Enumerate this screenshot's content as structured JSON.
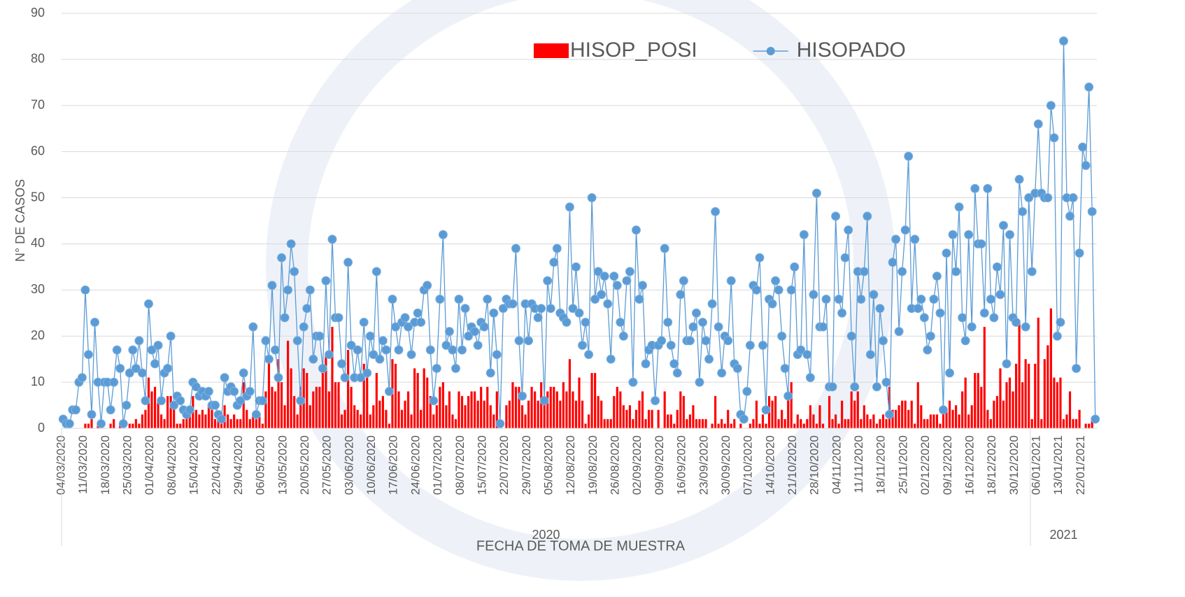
{
  "chart_data": {
    "type": "bar_line",
    "x_label": "FECHA DE TOMA DE MUESTRA",
    "y_label": "N° DE CASOS",
    "legend": "top",
    "grid": true,
    "ylim": [
      0,
      90
    ],
    "yticks": [
      0,
      10,
      20,
      30,
      40,
      50,
      60,
      70,
      80,
      90
    ],
    "x_groups": [
      {
        "label": "2020",
        "count": 306
      },
      {
        "label": "2021",
        "count": 21
      }
    ],
    "categories": [
      "04/03/2020",
      null,
      null,
      null,
      null,
      null,
      null,
      "11/03/2020",
      null,
      null,
      null,
      null,
      null,
      null,
      "18/03/2020",
      null,
      null,
      null,
      null,
      null,
      null,
      "25/03/2020",
      null,
      null,
      null,
      null,
      null,
      null,
      "01/04/2020",
      null,
      null,
      null,
      null,
      null,
      null,
      "08/04/2020",
      null,
      null,
      null,
      null,
      null,
      null,
      "15/04/2020",
      null,
      null,
      null,
      null,
      null,
      null,
      "22/04/2020",
      null,
      null,
      null,
      null,
      null,
      null,
      "29/04/2020",
      null,
      null,
      null,
      null,
      null,
      null,
      "06/05/2020",
      null,
      null,
      null,
      null,
      null,
      null,
      "13/05/2020",
      null,
      null,
      null,
      null,
      null,
      null,
      "20/05/2020",
      null,
      null,
      null,
      null,
      null,
      null,
      "27/05/2020",
      null,
      null,
      null,
      null,
      null,
      null,
      "03/06/2020",
      null,
      null,
      null,
      null,
      null,
      null,
      "10/06/2020",
      null,
      null,
      null,
      null,
      null,
      null,
      "17/06/2020",
      null,
      null,
      null,
      null,
      null,
      null,
      "24/06/2020",
      null,
      null,
      null,
      null,
      null,
      null,
      "01/07/2020",
      null,
      null,
      null,
      null,
      null,
      null,
      "08/07/2020",
      null,
      null,
      null,
      null,
      null,
      null,
      "15/07/2020",
      null,
      null,
      null,
      null,
      null,
      null,
      "22/07/2020",
      null,
      null,
      null,
      null,
      null,
      null,
      "29/07/2020",
      null,
      null,
      null,
      null,
      null,
      null,
      "05/08/2020",
      null,
      null,
      null,
      null,
      null,
      null,
      "12/08/2020",
      null,
      null,
      null,
      null,
      null,
      null,
      "19/08/2020",
      null,
      null,
      null,
      null,
      null,
      null,
      "26/08/2020",
      null,
      null,
      null,
      null,
      null,
      null,
      "02/09/2020",
      null,
      null,
      null,
      null,
      null,
      null,
      "09/09/2020",
      null,
      null,
      null,
      null,
      null,
      null,
      "16/09/2020",
      null,
      null,
      null,
      null,
      null,
      null,
      "23/09/2020",
      null,
      null,
      null,
      null,
      null,
      null,
      "30/09/2020",
      null,
      null,
      null,
      null,
      null,
      null,
      "07/10/2020",
      null,
      null,
      null,
      null,
      null,
      null,
      "14/10/2020",
      null,
      null,
      null,
      null,
      null,
      null,
      "21/10/2020",
      null,
      null,
      null,
      null,
      null,
      null,
      "28/10/2020",
      null,
      null,
      null,
      null,
      null,
      null,
      "04/11/2020",
      null,
      null,
      null,
      null,
      null,
      null,
      "11/11/2020",
      null,
      null,
      null,
      null,
      null,
      null,
      "18/11/2020",
      null,
      null,
      null,
      null,
      null,
      null,
      "25/11/2020",
      null,
      null,
      null,
      null,
      null,
      null,
      "02/12/2020",
      null,
      null,
      null,
      null,
      null,
      null,
      "09/12/2020",
      null,
      null,
      null,
      null,
      null,
      null,
      "16/12/2020",
      null,
      null,
      null,
      null,
      null,
      null,
      "18/12/2020",
      null,
      null,
      null,
      null,
      null,
      null,
      "30/12/2020",
      null,
      null,
      null,
      null,
      null,
      null,
      "06/01/2021",
      null,
      null,
      null,
      null,
      null,
      null,
      "13/01/2021",
      null,
      null,
      null,
      null,
      null,
      null,
      "22/01/2021",
      null,
      null,
      null,
      null
    ],
    "series": [
      {
        "name": "HISOP_POSI",
        "type": "bar",
        "color": "#ff0000",
        "values": [
          0,
          0,
          0,
          0,
          0,
          0,
          0,
          1,
          1,
          2,
          0,
          1,
          0,
          0,
          0,
          1,
          2,
          0,
          1,
          0,
          0,
          1,
          1,
          2,
          1,
          3,
          4,
          11,
          8,
          9,
          6,
          3,
          2,
          7,
          7,
          5,
          1,
          1,
          2,
          3,
          3,
          7,
          4,
          3,
          4,
          3,
          5,
          4,
          2,
          2,
          1,
          5,
          3,
          2,
          3,
          2,
          2,
          10,
          4,
          2,
          3,
          2,
          3,
          1,
          8,
          15,
          9,
          8,
          15,
          10,
          5,
          19,
          13,
          7,
          3,
          9,
          13,
          12,
          5,
          8,
          9,
          9,
          12,
          16,
          8,
          22,
          10,
          10,
          3,
          4,
          17,
          9,
          5,
          4,
          3,
          14,
          11,
          3,
          5,
          12,
          6,
          7,
          4,
          1,
          15,
          14,
          8,
          4,
          6,
          8,
          3,
          13,
          12,
          4,
          13,
          11,
          7,
          3,
          5,
          9,
          10,
          5,
          8,
          3,
          2,
          8,
          7,
          5,
          7,
          8,
          8,
          6,
          9,
          6,
          9,
          5,
          3,
          8,
          0,
          0,
          5,
          6,
          10,
          9,
          9,
          5,
          3,
          6,
          9,
          8,
          6,
          10,
          6,
          8,
          9,
          9,
          8,
          6,
          10,
          8,
          15,
          8,
          6,
          11,
          6,
          1,
          3,
          12,
          12,
          7,
          6,
          2,
          2,
          2,
          7,
          9,
          8,
          5,
          4,
          5,
          2,
          4,
          6,
          8,
          2,
          4,
          4,
          0,
          4,
          0,
          8,
          3,
          3,
          1,
          4,
          8,
          7,
          2,
          3,
          5,
          2,
          2,
          2,
          2,
          0,
          1,
          7,
          1,
          2,
          1,
          4,
          1,
          2,
          0,
          1,
          0,
          0,
          1,
          2,
          6,
          1,
          3,
          1,
          7,
          6,
          7,
          2,
          4,
          2,
          8,
          10,
          1,
          3,
          2,
          1,
          2,
          5,
          3,
          1,
          5,
          1,
          0,
          7,
          2,
          3,
          1,
          6,
          2,
          2,
          8,
          6,
          8,
          2,
          5,
          3,
          2,
          3,
          1,
          2,
          3,
          2,
          9,
          4,
          4,
          5,
          6,
          6,
          4,
          6,
          1,
          10,
          5,
          2,
          2,
          3,
          3,
          3,
          1,
          4,
          4,
          6,
          4,
          5,
          3,
          8,
          11,
          3,
          5,
          12,
          12,
          9,
          22,
          4,
          2,
          6,
          7,
          13,
          6,
          10,
          11,
          8,
          14,
          23,
          10,
          15,
          14,
          2,
          14,
          24,
          2,
          15,
          18,
          26,
          11,
          10,
          11,
          2,
          3,
          8,
          2,
          2,
          4,
          0,
          1,
          1,
          2,
          0
        ]
      },
      {
        "name": "HISOPADO",
        "type": "line",
        "color": "#5b9bd5",
        "values": [
          2,
          1,
          1,
          4,
          4,
          10,
          11,
          30,
          16,
          3,
          23,
          10,
          1,
          10,
          10,
          4,
          10,
          17,
          13,
          1,
          5,
          12,
          17,
          13,
          19,
          12,
          6,
          27,
          17,
          14,
          18,
          6,
          12,
          13,
          20,
          5,
          7,
          6,
          4,
          3,
          4,
          10,
          9,
          7,
          8,
          7,
          8,
          5,
          5,
          3,
          2,
          11,
          8,
          9,
          8,
          5,
          6,
          12,
          7,
          8,
          22,
          3,
          6,
          6,
          19,
          15,
          31,
          17,
          11,
          37,
          24,
          30,
          40,
          34,
          19,
          6,
          22,
          26,
          30,
          15,
          20,
          20,
          13,
          32,
          16,
          41,
          24,
          24,
          14,
          11,
          36,
          18,
          11,
          17,
          11,
          23,
          12,
          20,
          16,
          34,
          15,
          19,
          17,
          8,
          28,
          22,
          17,
          23,
          24,
          22,
          16,
          23,
          25,
          23,
          30,
          31,
          17,
          6,
          13,
          28,
          42,
          18,
          21,
          17,
          13,
          28,
          17,
          26,
          20,
          22,
          21,
          18,
          23,
          22,
          28,
          12,
          25,
          16,
          1,
          26,
          28,
          27,
          27,
          39,
          19,
          7,
          27,
          19,
          27,
          26,
          24,
          26,
          6,
          32,
          26,
          36,
          39,
          25,
          24,
          23,
          48,
          26,
          35,
          25,
          18,
          23,
          16,
          50,
          28,
          34,
          29,
          33,
          27,
          15,
          33,
          31,
          23,
          20,
          32,
          34,
          10,
          43,
          28,
          31,
          14,
          17,
          18,
          6,
          18,
          19,
          39,
          23,
          18,
          14,
          12,
          29,
          32,
          19,
          19,
          22,
          25,
          10,
          23,
          19,
          15,
          27,
          47,
          22,
          12,
          20,
          19,
          32,
          14,
          13,
          3,
          2,
          8,
          18,
          31,
          30,
          37,
          18,
          4,
          28,
          27,
          32,
          30,
          20,
          13,
          7,
          30,
          35,
          16,
          17,
          42,
          16,
          11,
          29,
          51,
          22,
          22,
          28,
          9,
          9,
          46,
          28,
          25,
          37,
          43,
          20,
          9,
          34,
          28,
          34,
          46,
          16,
          29,
          9,
          26,
          19,
          10,
          3,
          36,
          41,
          21,
          34,
          43,
          59,
          26,
          41,
          26,
          28,
          24,
          17,
          20,
          28,
          33,
          25,
          4,
          38,
          12,
          42,
          34,
          48,
          24,
          19,
          42,
          22,
          52,
          40,
          40,
          25,
          52,
          28,
          24,
          35,
          29,
          44,
          14,
          42,
          24,
          23,
          54,
          47,
          22,
          50,
          34,
          51,
          66,
          51,
          50,
          50,
          70,
          63,
          20,
          23,
          84,
          50,
          46,
          50,
          13,
          38,
          61,
          57,
          74,
          47,
          2
        ]
      }
    ]
  }
}
